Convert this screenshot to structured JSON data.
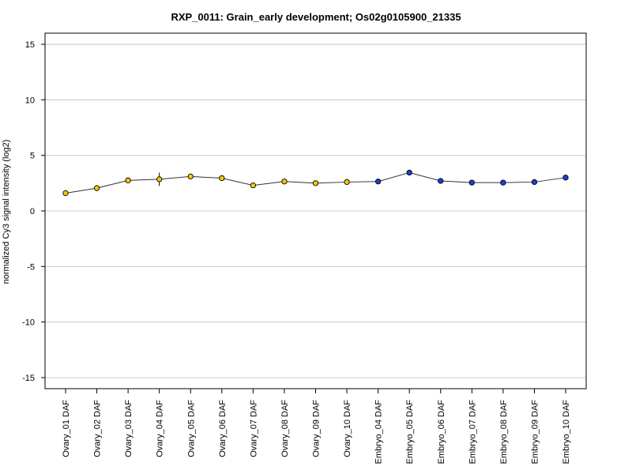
{
  "chart_data": {
    "type": "line",
    "title": "RXP_0011: Grain_early development; Os02g0105900_21335",
    "xlabel": "",
    "ylabel": "normalized Cy3 signal intensity (log2)",
    "ylim": [
      -16,
      16
    ],
    "yticks": [
      15,
      10,
      5,
      0,
      -5,
      -10,
      -15
    ],
    "grid": "horizontal",
    "categories": [
      "Ovary_01 DAF",
      "Ovary_02 DAF",
      "Ovary_03 DAF",
      "Ovary_04 DAF",
      "Ovary_05 DAF",
      "Ovary_06 DAF",
      "Ovary_07 DAF",
      "Ovary_08 DAF",
      "Ovary_09 DAF",
      "Ovary_10 DAF",
      "Embryo_04 DAF",
      "Embryo_05 DAF",
      "Embryo_06 DAF",
      "Embryo_07 DAF",
      "Embryo_08 DAF",
      "Embryo_09 DAF",
      "Embryo_10 DAF"
    ],
    "values": [
      1.6,
      2.05,
      2.75,
      2.85,
      3.1,
      2.95,
      2.3,
      2.65,
      2.5,
      2.6,
      2.65,
      3.45,
      2.7,
      2.55,
      2.55,
      2.6,
      3.0
    ],
    "error": [
      0.1,
      0.25,
      0.15,
      0.6,
      0.15,
      0.1,
      0.1,
      0.15,
      0.1,
      0.15,
      0.1,
      0.1,
      0.1,
      0.1,
      0.05,
      0.1,
      0.1
    ],
    "point_colors": [
      "#f5c800",
      "#f5c800",
      "#f5c800",
      "#f5c800",
      "#f5c800",
      "#f5c800",
      "#f5c800",
      "#f5c800",
      "#f5c800",
      "#f5c800",
      "#1a3fd8",
      "#1a3fd8",
      "#1a3fd8",
      "#1a3fd8",
      "#1a3fd8",
      "#1a3fd8",
      "#1a3fd8"
    ],
    "line_color": "#333333",
    "grid_color": "#c8c8c8"
  }
}
